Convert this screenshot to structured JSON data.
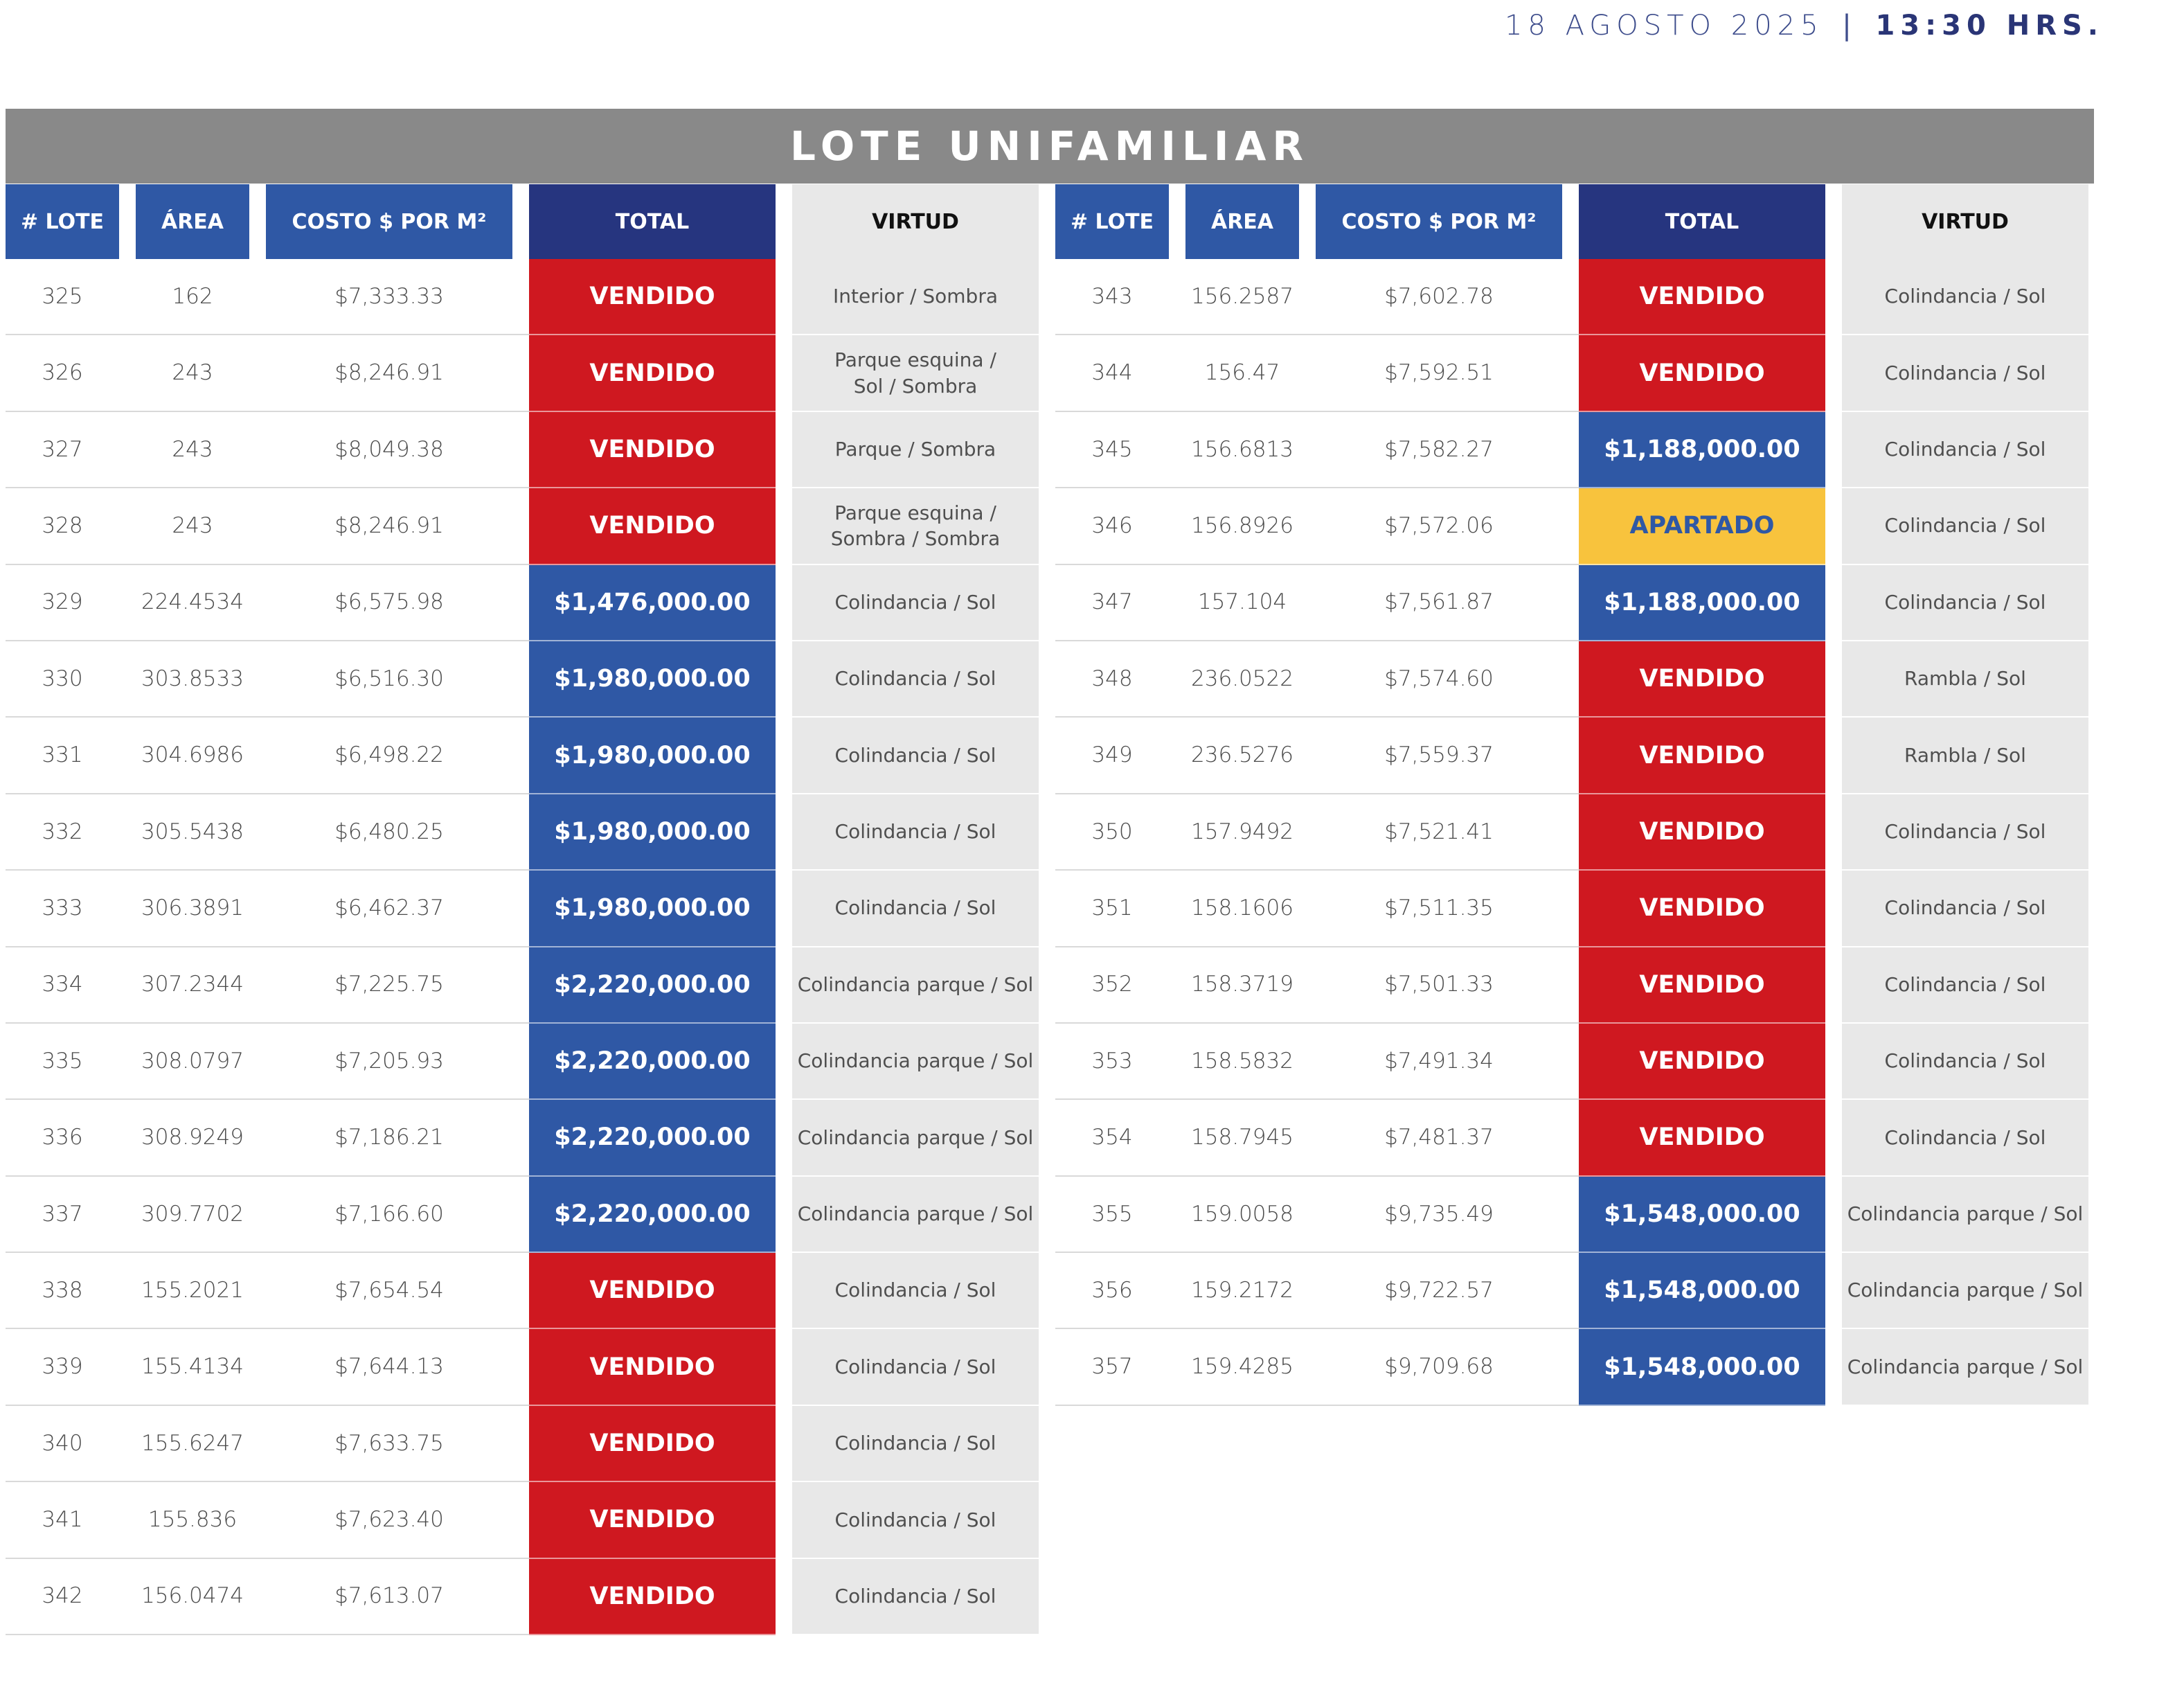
{
  "header": {
    "date": "18 AGOSTO 2025",
    "separator": "|",
    "time": "13:30 HRS."
  },
  "title": "LOTE UNIFAMILIAR",
  "columns": [
    "# LOTE",
    "ÁREA",
    "COSTO $ POR M²",
    "TOTAL",
    "VIRTUD"
  ],
  "status_colors": {
    "vendido": "#cf1820",
    "disponible": "#2f58a5",
    "apartado": "#f8c33d"
  },
  "left_rows": [
    {
      "lote": "325",
      "area": "162",
      "costo": "$7,333.33",
      "total": "VENDIDO",
      "status": "sold",
      "virtud": "Interior / Sombra"
    },
    {
      "lote": "326",
      "area": "243",
      "costo": "$8,246.91",
      "total": "VENDIDO",
      "status": "sold",
      "virtud": "Parque esquina /\nSol / Sombra"
    },
    {
      "lote": "327",
      "area": "243",
      "costo": "$8,049.38",
      "total": "VENDIDO",
      "status": "sold",
      "virtud": "Parque / Sombra"
    },
    {
      "lote": "328",
      "area": "243",
      "costo": "$8,246.91",
      "total": "VENDIDO",
      "status": "sold",
      "virtud": "Parque esquina /\nSombra / Sombra"
    },
    {
      "lote": "329",
      "area": "224.4534",
      "costo": "$6,575.98",
      "total": "$1,476,000.00",
      "status": "avail",
      "virtud": "Colindancia / Sol"
    },
    {
      "lote": "330",
      "area": "303.8533",
      "costo": "$6,516.30",
      "total": "$1,980,000.00",
      "status": "avail",
      "virtud": "Colindancia / Sol"
    },
    {
      "lote": "331",
      "area": "304.6986",
      "costo": "$6,498.22",
      "total": "$1,980,000.00",
      "status": "avail",
      "virtud": "Colindancia / Sol"
    },
    {
      "lote": "332",
      "area": "305.5438",
      "costo": "$6,480.25",
      "total": "$1,980,000.00",
      "status": "avail",
      "virtud": "Colindancia / Sol"
    },
    {
      "lote": "333",
      "area": "306.3891",
      "costo": "$6,462.37",
      "total": "$1,980,000.00",
      "status": "avail",
      "virtud": "Colindancia / Sol"
    },
    {
      "lote": "334",
      "area": "307.2344",
      "costo": "$7,225.75",
      "total": "$2,220,000.00",
      "status": "avail",
      "virtud": "Colindancia parque / Sol"
    },
    {
      "lote": "335",
      "area": "308.0797",
      "costo": "$7,205.93",
      "total": "$2,220,000.00",
      "status": "avail",
      "virtud": "Colindancia parque / Sol"
    },
    {
      "lote": "336",
      "area": "308.9249",
      "costo": "$7,186.21",
      "total": "$2,220,000.00",
      "status": "avail",
      "virtud": "Colindancia parque / Sol"
    },
    {
      "lote": "337",
      "area": "309.7702",
      "costo": "$7,166.60",
      "total": "$2,220,000.00",
      "status": "avail",
      "virtud": "Colindancia parque / Sol"
    },
    {
      "lote": "338",
      "area": "155.2021",
      "costo": "$7,654.54",
      "total": "VENDIDO",
      "status": "sold",
      "virtud": "Colindancia / Sol"
    },
    {
      "lote": "339",
      "area": "155.4134",
      "costo": "$7,644.13",
      "total": "VENDIDO",
      "status": "sold",
      "virtud": "Colindancia / Sol"
    },
    {
      "lote": "340",
      "area": "155.6247",
      "costo": "$7,633.75",
      "total": "VENDIDO",
      "status": "sold",
      "virtud": "Colindancia / Sol"
    },
    {
      "lote": "341",
      "area": "155.836",
      "costo": "$7,623.40",
      "total": "VENDIDO",
      "status": "sold",
      "virtud": "Colindancia / Sol"
    },
    {
      "lote": "342",
      "area": "156.0474",
      "costo": "$7,613.07",
      "total": "VENDIDO",
      "status": "sold",
      "virtud": "Colindancia / Sol"
    }
  ],
  "right_rows": [
    {
      "lote": "343",
      "area": "156.2587",
      "costo": "$7,602.78",
      "total": "VENDIDO",
      "status": "sold",
      "virtud": "Colindancia / Sol"
    },
    {
      "lote": "344",
      "area": "156.47",
      "costo": "$7,592.51",
      "total": "VENDIDO",
      "status": "sold",
      "virtud": "Colindancia / Sol"
    },
    {
      "lote": "345",
      "area": "156.6813",
      "costo": "$7,582.27",
      "total": "$1,188,000.00",
      "status": "avail",
      "virtud": "Colindancia / Sol"
    },
    {
      "lote": "346",
      "area": "156.8926",
      "costo": "$7,572.06",
      "total": "APARTADO",
      "status": "reserved",
      "virtud": "Colindancia / Sol"
    },
    {
      "lote": "347",
      "area": "157.104",
      "costo": "$7,561.87",
      "total": "$1,188,000.00",
      "status": "avail",
      "virtud": "Colindancia / Sol"
    },
    {
      "lote": "348",
      "area": "236.0522",
      "costo": "$7,574.60",
      "total": "VENDIDO",
      "status": "sold",
      "virtud": "Rambla / Sol"
    },
    {
      "lote": "349",
      "area": "236.5276",
      "costo": "$7,559.37",
      "total": "VENDIDO",
      "status": "sold",
      "virtud": "Rambla / Sol"
    },
    {
      "lote": "350",
      "area": "157.9492",
      "costo": "$7,521.41",
      "total": "VENDIDO",
      "status": "sold",
      "virtud": "Colindancia / Sol"
    },
    {
      "lote": "351",
      "area": "158.1606",
      "costo": "$7,511.35",
      "total": "VENDIDO",
      "status": "sold",
      "virtud": "Colindancia / Sol"
    },
    {
      "lote": "352",
      "area": "158.3719",
      "costo": "$7,501.33",
      "total": "VENDIDO",
      "status": "sold",
      "virtud": "Colindancia / Sol"
    },
    {
      "lote": "353",
      "area": "158.5832",
      "costo": "$7,491.34",
      "total": "VENDIDO",
      "status": "sold",
      "virtud": "Colindancia / Sol"
    },
    {
      "lote": "354",
      "area": "158.7945",
      "costo": "$7,481.37",
      "total": "VENDIDO",
      "status": "sold",
      "virtud": "Colindancia / Sol"
    },
    {
      "lote": "355",
      "area": "159.0058",
      "costo": "$9,735.49",
      "total": "$1,548,000.00",
      "status": "avail",
      "virtud": "Colindancia parque / Sol"
    },
    {
      "lote": "356",
      "area": "159.2172",
      "costo": "$9,722.57",
      "total": "$1,548,000.00",
      "status": "avail",
      "virtud": "Colindancia parque / Sol"
    },
    {
      "lote": "357",
      "area": "159.4285",
      "costo": "$9,709.68",
      "total": "$1,548,000.00",
      "status": "avail",
      "virtud": "Colindancia parque / Sol"
    }
  ]
}
